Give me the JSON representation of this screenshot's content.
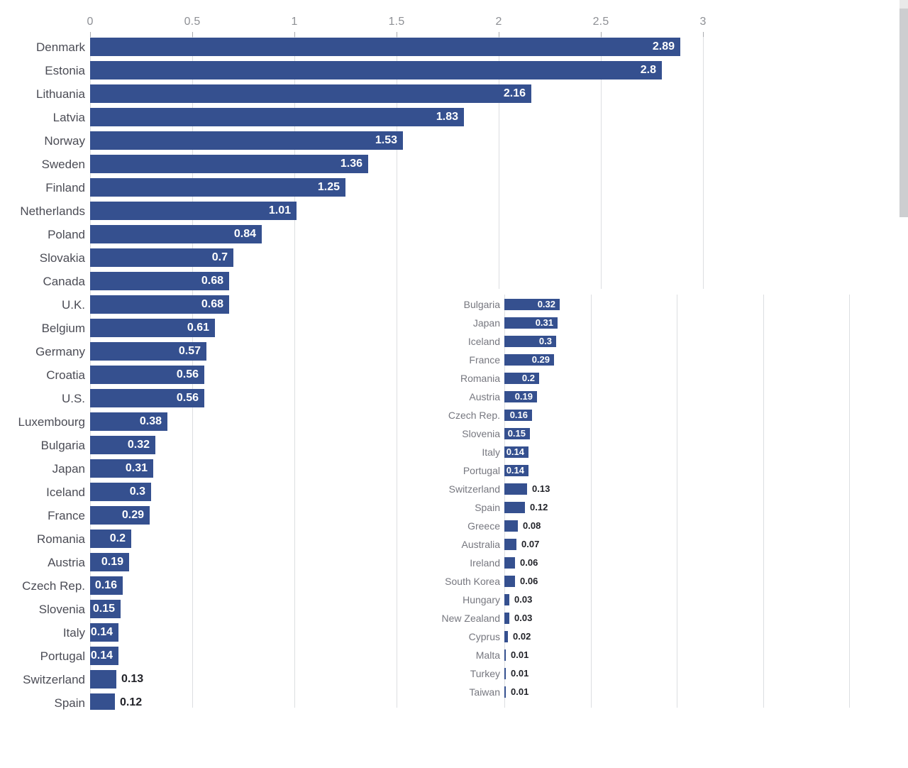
{
  "colors": {
    "background": "#ffffff",
    "bar": "#35508f",
    "value_inside": "#ffffff",
    "value_outside": "#222329",
    "label_main": "#4b4c55",
    "label_inset": "#76777f",
    "axis_label": "#8e9095",
    "gridline": "#dcdee1",
    "tick_mark": "#a8aaae",
    "scrollbar_thumb": "#cdced0",
    "scrollbar_track": "#e9e9e9"
  },
  "chart_data": [
    {
      "id": "main-bar-chart",
      "type": "bar",
      "orientation": "horizontal",
      "title": "",
      "xlabel": "",
      "ylabel": "",
      "grid": true,
      "x_axis": {
        "position": "top",
        "range": [
          0,
          3
        ],
        "tick_values": [
          0,
          0.5,
          1,
          1.5,
          2,
          2.5,
          3
        ],
        "tick_labels": [
          "0",
          "0.5",
          "1",
          "1.5",
          "2",
          "2.5",
          "3"
        ]
      },
      "bars": [
        {
          "label": "Denmark",
          "value": 2.89,
          "display": "2.89"
        },
        {
          "label": "Estonia",
          "value": 2.8,
          "display": "2.8"
        },
        {
          "label": "Lithuania",
          "value": 2.16,
          "display": "2.16"
        },
        {
          "label": "Latvia",
          "value": 1.83,
          "display": "1.83"
        },
        {
          "label": "Norway",
          "value": 1.53,
          "display": "1.53"
        },
        {
          "label": "Sweden",
          "value": 1.36,
          "display": "1.36"
        },
        {
          "label": "Finland",
          "value": 1.25,
          "display": "1.25"
        },
        {
          "label": "Netherlands",
          "value": 1.01,
          "display": "1.01"
        },
        {
          "label": "Poland",
          "value": 0.84,
          "display": "0.84"
        },
        {
          "label": "Slovakia",
          "value": 0.7,
          "display": "0.7"
        },
        {
          "label": "Canada",
          "value": 0.68,
          "display": "0.68"
        },
        {
          "label": "U.K.",
          "value": 0.68,
          "display": "0.68"
        },
        {
          "label": "Belgium",
          "value": 0.61,
          "display": "0.61"
        },
        {
          "label": "Germany",
          "value": 0.57,
          "display": "0.57"
        },
        {
          "label": "Croatia",
          "value": 0.56,
          "display": "0.56"
        },
        {
          "label": "U.S.",
          "value": 0.56,
          "display": "0.56"
        },
        {
          "label": "Luxembourg",
          "value": 0.38,
          "display": "0.38"
        },
        {
          "label": "Bulgaria",
          "value": 0.32,
          "display": "0.32"
        },
        {
          "label": "Japan",
          "value": 0.31,
          "display": "0.31"
        },
        {
          "label": "Iceland",
          "value": 0.3,
          "display": "0.3"
        },
        {
          "label": "France",
          "value": 0.29,
          "display": "0.29"
        },
        {
          "label": "Romania",
          "value": 0.2,
          "display": "0.2"
        },
        {
          "label": "Austria",
          "value": 0.19,
          "display": "0.19"
        },
        {
          "label": "Czech Rep.",
          "value": 0.16,
          "display": "0.16"
        },
        {
          "label": "Slovenia",
          "value": 0.15,
          "display": "0.15"
        },
        {
          "label": "Italy",
          "value": 0.14,
          "display": "0.14"
        },
        {
          "label": "Portugal",
          "value": 0.14,
          "display": "0.14"
        },
        {
          "label": "Switzerland",
          "value": 0.13,
          "display": "0.13"
        },
        {
          "label": "Spain",
          "value": 0.12,
          "display": "0.12"
        }
      ]
    },
    {
      "id": "inset-bar-chart",
      "type": "bar",
      "orientation": "horizontal",
      "title": "",
      "xlabel": "",
      "ylabel": "",
      "grid": true,
      "x_axis": {
        "position": "none",
        "range": [
          0,
          2.2
        ],
        "tick_values": [
          0,
          0.5,
          1,
          1.5,
          2
        ],
        "tick_labels": []
      },
      "bars": [
        {
          "label": "Bulgaria",
          "value": 0.32,
          "display": "0.32"
        },
        {
          "label": "Japan",
          "value": 0.31,
          "display": "0.31"
        },
        {
          "label": "Iceland",
          "value": 0.3,
          "display": "0.3"
        },
        {
          "label": "France",
          "value": 0.29,
          "display": "0.29"
        },
        {
          "label": "Romania",
          "value": 0.2,
          "display": "0.2"
        },
        {
          "label": "Austria",
          "value": 0.19,
          "display": "0.19"
        },
        {
          "label": "Czech Rep.",
          "value": 0.16,
          "display": "0.16"
        },
        {
          "label": "Slovenia",
          "value": 0.15,
          "display": "0.15"
        },
        {
          "label": "Italy",
          "value": 0.14,
          "display": "0.14"
        },
        {
          "label": "Portugal",
          "value": 0.14,
          "display": "0.14"
        },
        {
          "label": "Switzerland",
          "value": 0.13,
          "display": "0.13"
        },
        {
          "label": "Spain",
          "value": 0.12,
          "display": "0.12"
        },
        {
          "label": "Greece",
          "value": 0.08,
          "display": "0.08"
        },
        {
          "label": "Australia",
          "value": 0.07,
          "display": "0.07"
        },
        {
          "label": "Ireland",
          "value": 0.06,
          "display": "0.06"
        },
        {
          "label": "South Korea",
          "value": 0.06,
          "display": "0.06"
        },
        {
          "label": "Hungary",
          "value": 0.03,
          "display": "0.03"
        },
        {
          "label": "New Zealand",
          "value": 0.03,
          "display": "0.03"
        },
        {
          "label": "Cyprus",
          "value": 0.02,
          "display": "0.02"
        },
        {
          "label": "Malta",
          "value": 0.01,
          "display": "0.01"
        },
        {
          "label": "Turkey",
          "value": 0.01,
          "display": "0.01"
        },
        {
          "label": "Taiwan",
          "value": 0.01,
          "display": "0.01"
        }
      ]
    }
  ],
  "scrollbar": {
    "orientation": "vertical",
    "visible": true
  }
}
